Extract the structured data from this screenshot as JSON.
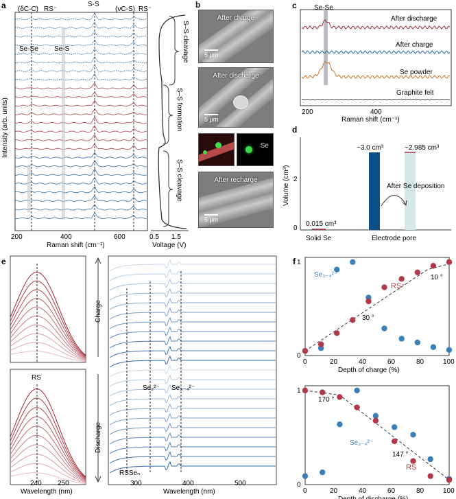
{
  "panel_letters": {
    "a": "a",
    "b": "b",
    "c": "c",
    "d": "d",
    "e": "e",
    "f": "f"
  },
  "panel_a": {
    "ylabel": "Intensity (arb. units)",
    "xlabel": "Raman shift (cm⁻¹)",
    "xticks": [
      "200",
      "400",
      "600"
    ],
    "top_labels": {
      "dcc": "(δC-C)",
      "rs1": "RS⁻",
      "ss": "S-S",
      "vcs": "(νC-S)",
      "rs2": "RS⁻"
    },
    "peak_labels": {
      "sese": "Se-Se",
      "ses": "Se-S"
    },
    "voltage_xlabel": "Voltage (V)",
    "voltage_xticks": [
      "0.5",
      "1.5"
    ],
    "stage_labels": [
      "S–S cleavage",
      "S–S formation",
      "S–S cleavage"
    ],
    "colors": {
      "blue": "#2e6da4",
      "red": "#b23a48",
      "gray": "#888888"
    }
  },
  "panel_b": {
    "images": [
      {
        "label": "After charge",
        "scale": "5 μm"
      },
      {
        "label": "After discharge",
        "scale": "5 μm"
      },
      {
        "label": "After recharge",
        "scale": "5 μm"
      }
    ],
    "eds_label": "Se"
  },
  "panel_c": {
    "peak_label": "Se-Se",
    "xlabel": "Raman shift (cm⁻¹)",
    "xticks": [
      "200",
      "400"
    ],
    "series": [
      {
        "name": "After discharge",
        "color": "#9b2d3a"
      },
      {
        "name": "After charge",
        "color": "#2e6da4"
      },
      {
        "name": "Se powder",
        "color": "#c8742c"
      },
      {
        "name": "Graphite felt",
        "color": "#444444"
      }
    ]
  },
  "panel_d": {
    "ylabel": "Volume (cm³)",
    "yticks": [
      "0",
      "2"
    ],
    "categories": [
      "Solid Se",
      "Electrode pore"
    ],
    "bar_labels": {
      "solid": "0.015 cm³",
      "pore": "~3.0 cm³",
      "after": "~2.985 cm³"
    },
    "arrow_label": "After Se deposition",
    "colors": {
      "pore": "#0b4f86",
      "after": "#d6e6ef"
    }
  },
  "panel_e": {
    "left_xlabel": "Wavelength (nm)",
    "left_xticks": [
      "240",
      "250"
    ],
    "right_xlabel": "Wavelength (nm)",
    "right_xticks": [
      "300",
      "400",
      "500"
    ],
    "rs_label": "RS",
    "charge_label": "Charge",
    "discharge_label": "Discharge",
    "se2_label": "Se₂²⁻",
    "se34_label": "Se₃₋₄²⁻",
    "rssen_label": "RSSeₙ"
  },
  "chart_data": [
    {
      "type": "scatter",
      "title": "Depth of charge",
      "xlabel": "Depth of charge (%)",
      "xlim": [
        0,
        100
      ],
      "ylim": [
        0,
        1.05
      ],
      "xticks": [
        "0",
        "20",
        "40",
        "60",
        "80",
        "100"
      ],
      "yticks": [
        "0",
        "1"
      ],
      "angle_labels": [
        "30 °",
        "10 °"
      ],
      "series": [
        {
          "name": "Se₃₋₄²⁻",
          "color": "#3a7fb8",
          "x": [
            0,
            11,
            22,
            33,
            44,
            55,
            67,
            78,
            89,
            100
          ],
          "y": [
            0.05,
            0.08,
            0.92,
            1.0,
            0.62,
            0.29,
            0.18,
            0.14,
            0.09,
            0.06
          ]
        },
        {
          "name": "RS⁻",
          "color": "#b23a48",
          "x": [
            0,
            11,
            22,
            33,
            44,
            55,
            67,
            78,
            89,
            100
          ],
          "y": [
            0.05,
            0.12,
            0.24,
            0.38,
            0.58,
            0.73,
            0.82,
            0.89,
            0.96,
            1.0
          ]
        }
      ]
    },
    {
      "type": "scatter",
      "title": "Depth of discharge",
      "xlabel": "Depth of discharge (%)",
      "xlim": [
        0,
        100
      ],
      "ylim": [
        0,
        1.05
      ],
      "xticks": [
        "0",
        "20",
        "40",
        "60",
        "80",
        "100"
      ],
      "yticks": [
        "0",
        "1"
      ],
      "angle_labels": [
        "170 °",
        "147 °"
      ],
      "series": [
        {
          "name": "Se₃₋₄²⁻",
          "color": "#3a7fb8",
          "x": [
            0,
            12,
            24,
            36,
            49,
            62,
            75,
            87,
            100
          ],
          "y": [
            0.09,
            0.13,
            0.64,
            1.0,
            0.73,
            0.61,
            0.53,
            0.27,
            0.06
          ]
        },
        {
          "name": "RS",
          "color": "#b23a48",
          "x": [
            0,
            12,
            24,
            36,
            49,
            62,
            75,
            87,
            100
          ],
          "y": [
            1.0,
            0.98,
            0.93,
            0.82,
            0.68,
            0.46,
            0.25,
            0.09,
            0.05
          ]
        }
      ]
    }
  ]
}
